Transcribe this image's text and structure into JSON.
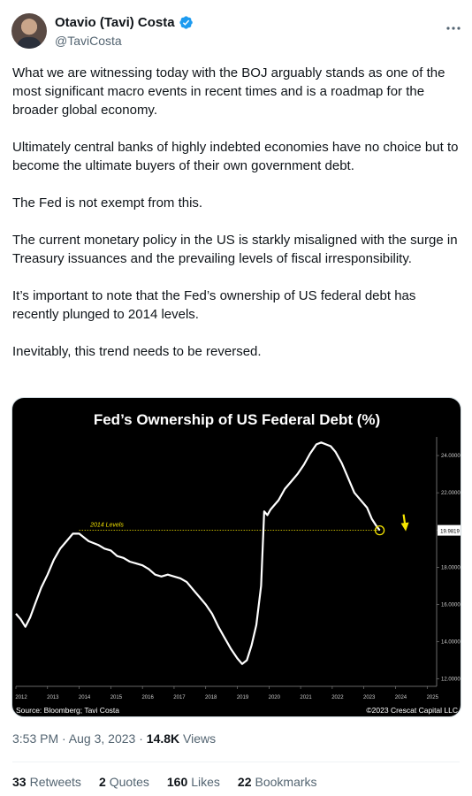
{
  "tweet": {
    "author": {
      "name": "Otavio (Tavi) Costa",
      "handle": "@TaviCosta"
    },
    "more_icon": "more-dots-icon",
    "verified_icon": "verified-badge-icon",
    "paragraphs": [
      "What we are witnessing today with the BOJ arguably stands as one of the most significant macro events in recent times and is a roadmap for the broader global economy.",
      "Ultimately central banks of highly indebted economies have no choice but to become the ultimate buyers of their own government debt.",
      "The Fed is not exempt from this.",
      "The current monetary policy in the US is starkly misaligned with the surge in Treasury issuances and the prevailing levels of fiscal irresponsibility.",
      "It’s important to note that the Fed’s ownership of US federal debt has recently plunged to 2014 levels.",
      "Inevitably, this trend needs to be reversed."
    ],
    "timestamp": "3:53 PM · Aug 3, 2023",
    "separator": "·",
    "views_count": "14.8K",
    "views_label": "Views",
    "stats": [
      {
        "count": "33",
        "label": "Retweets"
      },
      {
        "count": "2",
        "label": "Quotes"
      },
      {
        "count": "160",
        "label": "Likes"
      },
      {
        "count": "22",
        "label": "Bookmarks"
      }
    ]
  },
  "chart_data": {
    "type": "line",
    "title": "Fed’s Ownership of US Federal Debt (%)",
    "source": "Source: Bloomberg; Tavi Costa",
    "copyright": "©2023 Crescat Capital LLC",
    "annotation": "2014 Levels",
    "reference_level": 19.9819,
    "last_value_label": "19.9819",
    "x_ticks": [
      "2012",
      "2013",
      "2014",
      "2015",
      "2016",
      "2017",
      "2018",
      "2019",
      "2020",
      "2021",
      "2022",
      "2023",
      "2024",
      "2025"
    ],
    "y_ticks": [
      "12.0000",
      "14.0000",
      "16.0000",
      "18.0000",
      "20.0000",
      "22.0000",
      "24.0000"
    ],
    "y_tick_values": [
      12,
      14,
      16,
      18,
      20,
      22,
      24
    ],
    "xlim": [
      2012,
      2025.3
    ],
    "ylim": [
      11.6,
      25.0
    ],
    "grid": false,
    "line_color": "#ffffff",
    "background": "#000000",
    "arrow_color": "#f5e500",
    "series": [
      {
        "x": [
          2012.0,
          2012.15,
          2012.3,
          2012.45,
          2012.6,
          2012.8,
          2013.0,
          2013.2,
          2013.4,
          2013.6,
          2013.8,
          2014.0,
          2014.15,
          2014.3,
          2014.45,
          2014.6,
          2014.8,
          2015.0,
          2015.2,
          2015.4,
          2015.6,
          2015.8,
          2016.0,
          2016.2,
          2016.4,
          2016.6,
          2016.8,
          2017.0,
          2017.2,
          2017.4,
          2017.6,
          2017.8,
          2018.0,
          2018.2,
          2018.4,
          2018.6,
          2018.8,
          2019.0,
          2019.15,
          2019.3,
          2019.45,
          2019.6,
          2019.75,
          2019.85,
          2019.95,
          2020.05,
          2020.15,
          2020.3,
          2020.5,
          2020.7,
          2020.9,
          2021.1,
          2021.3,
          2021.5,
          2021.65,
          2021.8,
          2021.95,
          2022.1,
          2022.3,
          2022.5,
          2022.7,
          2022.9,
          2023.1,
          2023.25,
          2023.4,
          2023.5
        ],
        "y": [
          15.5,
          15.2,
          14.8,
          15.3,
          16.0,
          16.9,
          17.6,
          18.4,
          19.0,
          19.4,
          19.8,
          19.8,
          19.6,
          19.4,
          19.3,
          19.2,
          19.0,
          18.9,
          18.6,
          18.5,
          18.3,
          18.2,
          18.1,
          17.9,
          17.6,
          17.5,
          17.6,
          17.5,
          17.4,
          17.2,
          16.8,
          16.4,
          16.0,
          15.5,
          14.8,
          14.2,
          13.6,
          13.1,
          12.8,
          13.0,
          13.8,
          14.9,
          17.0,
          21.0,
          20.8,
          21.1,
          21.3,
          21.6,
          22.2,
          22.6,
          23.0,
          23.5,
          24.1,
          24.6,
          24.7,
          24.6,
          24.5,
          24.2,
          23.6,
          22.8,
          22.0,
          21.6,
          21.2,
          20.6,
          20.2,
          19.98
        ]
      }
    ]
  }
}
